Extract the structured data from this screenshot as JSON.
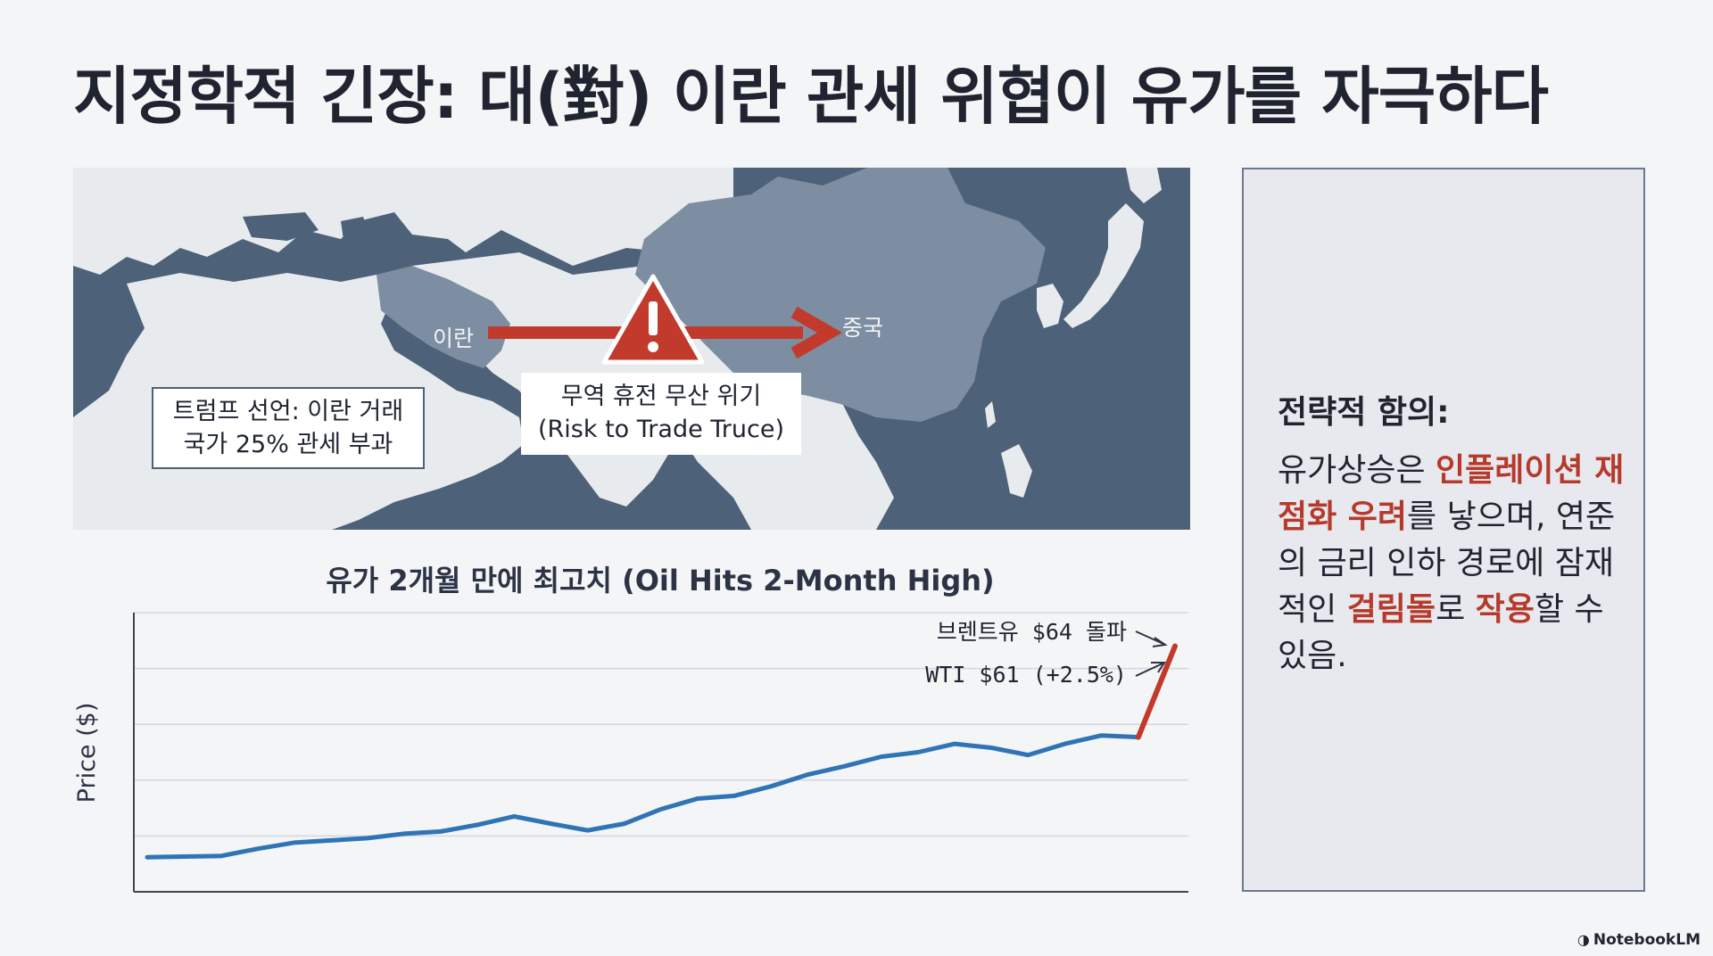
{
  "slide": {
    "title": "지정학적 긴장: 대(對) 이란 관세 위협이 유가를 자극하다"
  },
  "map": {
    "label_iran": "이란",
    "label_china": "중국",
    "warning_icon": "warning-triangle-icon",
    "callout_left": {
      "line1": "트럼프 선언: 이란 거래",
      "line2": "국가 25% 관세 부과"
    },
    "callout_center": {
      "line1": "무역 휴전 무산 위기",
      "line2": "(Risk to Trade Truce)"
    },
    "colors": {
      "sea": "#4d6178",
      "land": "#e8ebee",
      "highlight_land": "#7d8ea2",
      "arrow": "#c23a2b"
    }
  },
  "chart": {
    "title": "유가 2개월 만에 최고치 (Oil Hits 2-Month High)",
    "annotation_brent": "브렌트유 $64 돌파",
    "annotation_wti": "WTI $61 (+2.5%)"
  },
  "chart_data": {
    "type": "line",
    "title": "유가 2개월 만에 최고치 (Oil Hits 2-Month High)",
    "xlabel": "",
    "ylabel": "Price ($)",
    "ylim": [
      0,
      5
    ],
    "grid": true,
    "series": [
      {
        "color": "#2f74b5",
        "values": [
          0.62,
          0.63,
          0.64,
          0.77,
          0.88,
          0.92,
          0.96,
          1.04,
          1.08,
          1.2,
          1.35,
          1.22,
          1.1,
          1.22,
          1.48,
          1.67,
          1.72,
          1.89,
          2.1,
          2.25,
          2.42,
          2.5,
          2.65,
          2.58,
          2.45,
          2.65,
          2.8,
          2.77
        ]
      },
      {
        "color": "#c23a2b",
        "values": [
          null,
          null,
          null,
          null,
          null,
          null,
          null,
          null,
          null,
          null,
          null,
          null,
          null,
          null,
          null,
          null,
          null,
          null,
          null,
          null,
          null,
          null,
          null,
          null,
          null,
          null,
          null,
          2.77,
          4.4
        ]
      }
    ]
  },
  "panel": {
    "heading": "전략적 함의:",
    "body": {
      "p1": "유가상승은 ",
      "h1": "인플레이션 재점화 우려",
      "p2": "를 낳으며, 연준의 금리 인하 경로에 잠재적인 ",
      "h2": "걸림돌",
      "p3": "로 ",
      "h3": "작용",
      "p4": "할 수 있음."
    },
    "highlight_color": "#b63a2c"
  },
  "brand": {
    "name": "NotebookLM",
    "icon": "notebooklm-logo-icon"
  }
}
